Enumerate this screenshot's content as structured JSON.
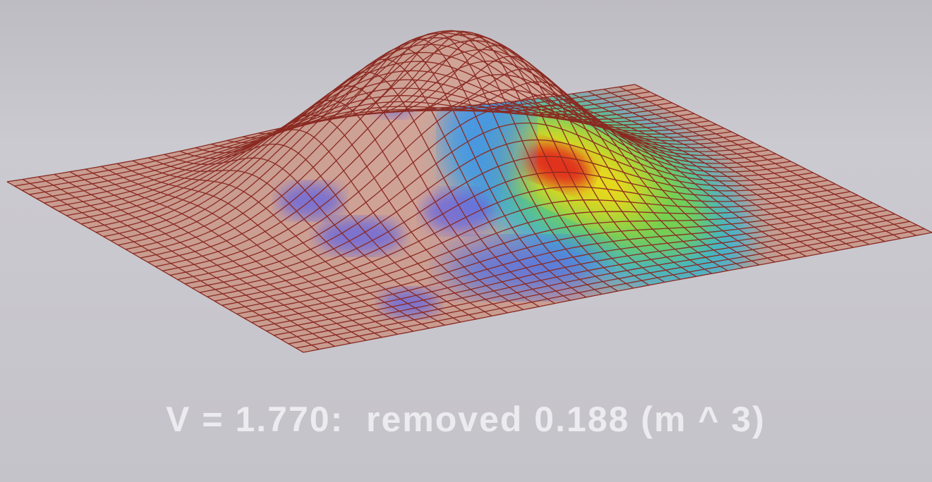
{
  "caption": "V = 1.770:  removed 0.188 (m ^ 3)"
}
